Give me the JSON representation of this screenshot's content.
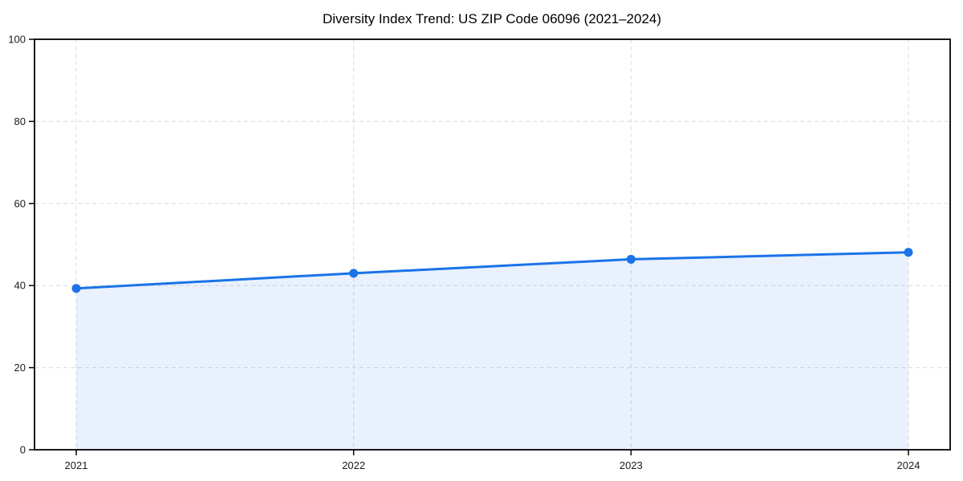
{
  "chart_data": {
    "type": "area",
    "title": "Diversity Index Trend: US ZIP Code 06096 (2021–2024)",
    "x": [
      2021,
      2022,
      2023,
      2024
    ],
    "xtick_labels": [
      "2021",
      "2022",
      "2023",
      "2024"
    ],
    "series": [
      {
        "name": "Diversity Index",
        "values": [
          39.3,
          43.0,
          46.4,
          48.1
        ]
      }
    ],
    "xlabel": "",
    "ylabel": "",
    "ylim": [
      0,
      100
    ],
    "yticks": [
      0,
      20,
      40,
      60,
      80,
      100
    ],
    "grid": "dashed-both-axes",
    "legend_position": "none",
    "colors": {
      "line": "#1a73e8",
      "marker": "#1a73e8",
      "area_fill": "rgba(26,115,232,0.10)",
      "grid": "#dcdcdc",
      "axis": "#000000",
      "tick_label": "#1a1a1a",
      "background": "#ffffff"
    }
  }
}
